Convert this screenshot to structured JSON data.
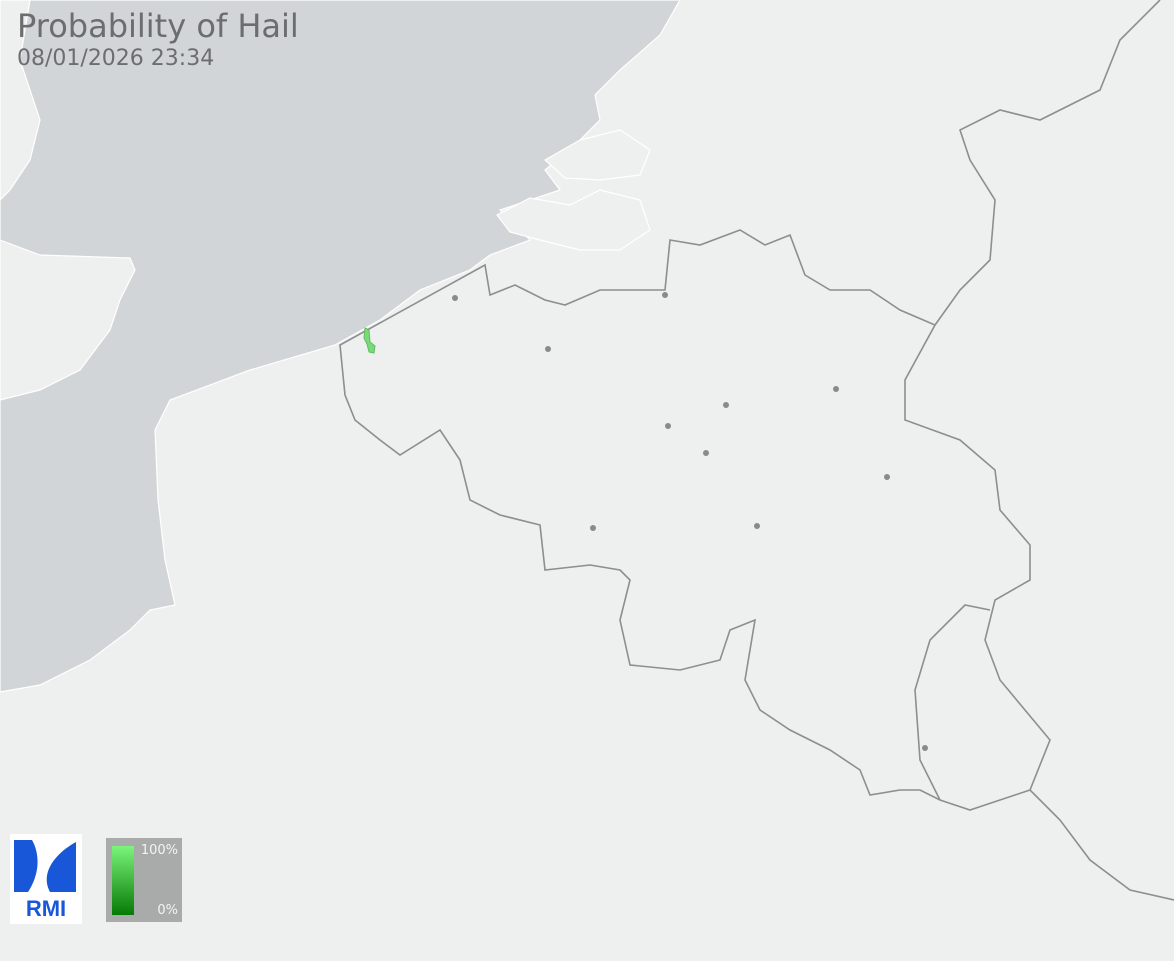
{
  "header": {
    "title": "Probability of Hail",
    "timestamp": "08/01/2026 23:34"
  },
  "logo": {
    "text": "RMI"
  },
  "legend": {
    "max_label": "100%",
    "min_label": "0%",
    "color_max": "#7bf57b",
    "color_min": "#067a06"
  },
  "colors": {
    "land": "#eef0ef",
    "sea": "#d2d5d7",
    "border": "#8c8e8f",
    "city": "#8a8a8a",
    "hail": "#7bd97b"
  }
}
